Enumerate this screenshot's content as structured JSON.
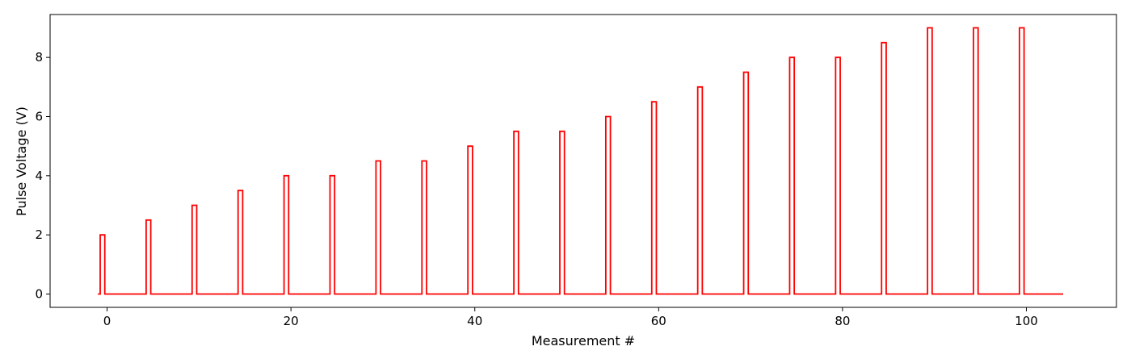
{
  "chart_data": {
    "type": "line",
    "title": "",
    "xlabel": "Measurement #",
    "ylabel": "Pulse Voltage (V)",
    "xlim": [
      -6.2,
      109.8
    ],
    "ylim": [
      -0.45,
      9.45
    ],
    "xticks": [
      0,
      20,
      40,
      60,
      80,
      100
    ],
    "yticks": [
      0,
      2,
      4,
      6,
      8
    ],
    "grid": false,
    "legend": "none",
    "line_color": "#ff0000",
    "series": [
      {
        "step": "steps-post",
        "x_start": -1,
        "x_end": 104,
        "pulse_width": 0.5,
        "pulses": [
          {
            "x": -0.75,
            "y": 2.0
          },
          {
            "x": 4.25,
            "y": 2.5
          },
          {
            "x": 9.25,
            "y": 3.0
          },
          {
            "x": 14.25,
            "y": 3.5
          },
          {
            "x": 19.25,
            "y": 4.0
          },
          {
            "x": 24.25,
            "y": 4.0
          },
          {
            "x": 29.25,
            "y": 4.5
          },
          {
            "x": 34.25,
            "y": 4.5
          },
          {
            "x": 39.25,
            "y": 5.0
          },
          {
            "x": 44.25,
            "y": 5.5
          },
          {
            "x": 49.25,
            "y": 5.5
          },
          {
            "x": 54.25,
            "y": 6.0
          },
          {
            "x": 59.25,
            "y": 6.5
          },
          {
            "x": 64.25,
            "y": 7.0
          },
          {
            "x": 69.25,
            "y": 7.5
          },
          {
            "x": 74.25,
            "y": 8.0
          },
          {
            "x": 79.25,
            "y": 8.0
          },
          {
            "x": 84.25,
            "y": 8.5
          },
          {
            "x": 89.25,
            "y": 9.0
          },
          {
            "x": 94.25,
            "y": 9.0
          },
          {
            "x": 99.25,
            "y": 9.0
          }
        ]
      }
    ]
  }
}
